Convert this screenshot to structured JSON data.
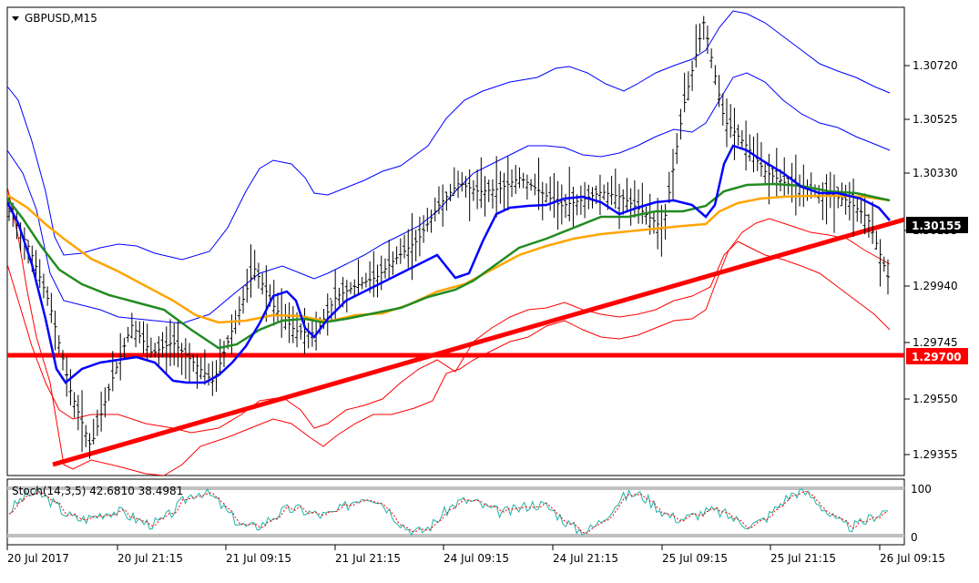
{
  "window": {
    "symbol_title": "GBPUSD,M15"
  },
  "colors": {
    "background": "#ffffff",
    "frame": "#000000",
    "grid_dash": "#c8c8c8",
    "candles": "#000000",
    "bb_outer": "#0000ff",
    "bb_inner": "#ff0000",
    "ma_blue": "#0000ff",
    "ma_green": "#228b22",
    "ma_orange": "#ffa500",
    "trendline": "#ff0000",
    "support": "#ff0000",
    "current_label_bg": "#000000",
    "support_label_bg": "#ff0000",
    "stoch_main": "#20b2aa",
    "stoch_signal": "#ff0000",
    "stoch_levels": "#c0c0c0"
  },
  "price_axis": {
    "ticks": [
      "1.30720",
      "1.30525",
      "1.30330",
      "1.30135",
      "1.29940",
      "1.29745",
      "1.29550",
      "1.29355"
    ],
    "current_price_label": "1.30155",
    "support_label": "1.29700"
  },
  "time_axis": {
    "ticks": [
      "20 Jul 2017",
      "20 Jul 21:15",
      "21 Jul 09:15",
      "21 Jul 21:15",
      "24 Jul 09:15",
      "24 Jul 21:15",
      "25 Jul 09:15",
      "25 Jul 21:15",
      "26 Jul 09:15"
    ]
  },
  "stochastic": {
    "label": "Stoch(14,3,5) 42.6810 38.4981",
    "level_top": "100",
    "level_bottom": "0"
  },
  "chart_data": {
    "type": "line",
    "title": "GBPUSD,M15",
    "ylim": [
      1.2925,
      1.309
    ],
    "x_start": "20 Jul 2017",
    "x_end": "26 Jul 09:15",
    "support_level": 1.297,
    "trendline": {
      "from_price": 1.29325,
      "to_price": 1.30155
    },
    "series": [
      {
        "values": [
          1.3018,
          1.3005,
          1.2985,
          1.2955,
          1.2935,
          1.2958,
          1.2978,
          1.2968,
          1.2972,
          1.2965,
          1.2958,
          1.2978,
          1.2998,
          1.2984,
          1.2976,
          1.2975,
          1.2988,
          1.2992,
          1.2995,
          1.3002,
          1.3008,
          1.302,
          1.3028,
          1.3025,
          1.3026,
          1.303,
          1.3025,
          1.302,
          1.3022,
          1.3025,
          1.3023,
          1.3018,
          1.3012,
          1.3055,
          1.3085,
          1.305,
          1.3042,
          1.3032,
          1.3028,
          1.3026,
          1.3024,
          1.3022,
          1.3016,
          1.2995
        ]
      },
      {
        "name": "",
        "values": [
          1.3022,
          1.3012,
          1.299,
          1.297,
          1.2962,
          1.2968,
          1.297,
          1.2968,
          1.2966,
          1.2962,
          1.296,
          1.2962,
          1.2978,
          1.299,
          1.2986,
          1.2978,
          1.298,
          1.2985,
          1.299,
          1.2992,
          1.2995,
          1.2998,
          1.301,
          1.3018,
          1.3022,
          1.3025,
          1.3022,
          1.302,
          1.3019,
          1.3021,
          1.3022,
          1.302,
          1.302,
          1.304,
          1.3043,
          1.3038,
          1.3032,
          1.3027,
          1.3026,
          1.3025,
          1.3024,
          1.3022,
          1.302,
          1.3015
        ]
      }
    ]
  }
}
